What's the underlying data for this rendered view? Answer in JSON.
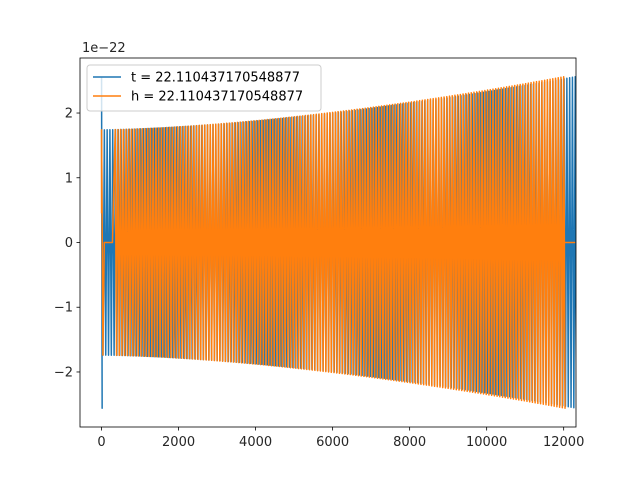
{
  "chart_data": {
    "type": "line",
    "title": "",
    "xlabel": "",
    "ylabel": "",
    "y_offset_label": "1e−22",
    "xlim": [
      -560,
      12320
    ],
    "ylim": [
      -2.85,
      2.85
    ],
    "x_ticks": [
      {
        "value": 0,
        "label": "0"
      },
      {
        "value": 2000,
        "label": "2000"
      },
      {
        "value": 4000,
        "label": "4000"
      },
      {
        "value": 6000,
        "label": "6000"
      },
      {
        "value": 8000,
        "label": "8000"
      },
      {
        "value": 10000,
        "label": "10000"
      },
      {
        "value": 12000,
        "label": "12000"
      }
    ],
    "y_ticks": [
      {
        "value": -2,
        "label": "−2"
      },
      {
        "value": -1,
        "label": "−1"
      },
      {
        "value": 0,
        "label": "0"
      },
      {
        "value": 1,
        "label": "1"
      },
      {
        "value": 2,
        "label": "2"
      }
    ],
    "legend_position": "upper-left",
    "grid": false,
    "series": [
      {
        "name": "t = 22.110437170548877",
        "color": "#1f77b4",
        "x_start": 0,
        "x_end": 12300,
        "cycles": 170,
        "amp_start": 1.74,
        "amp_end": 2.56,
        "initial_spike": 2.56
      },
      {
        "name": "h = 22.110437170548877",
        "color": "#ff7f0e",
        "x_start": 0,
        "x_end": 12000,
        "flat_until": 12300,
        "cycles": 170,
        "amp_start": 1.74,
        "amp_end": 2.56,
        "initial_value": 0.45,
        "gap_start": 30,
        "gap_end": 300
      }
    ]
  }
}
